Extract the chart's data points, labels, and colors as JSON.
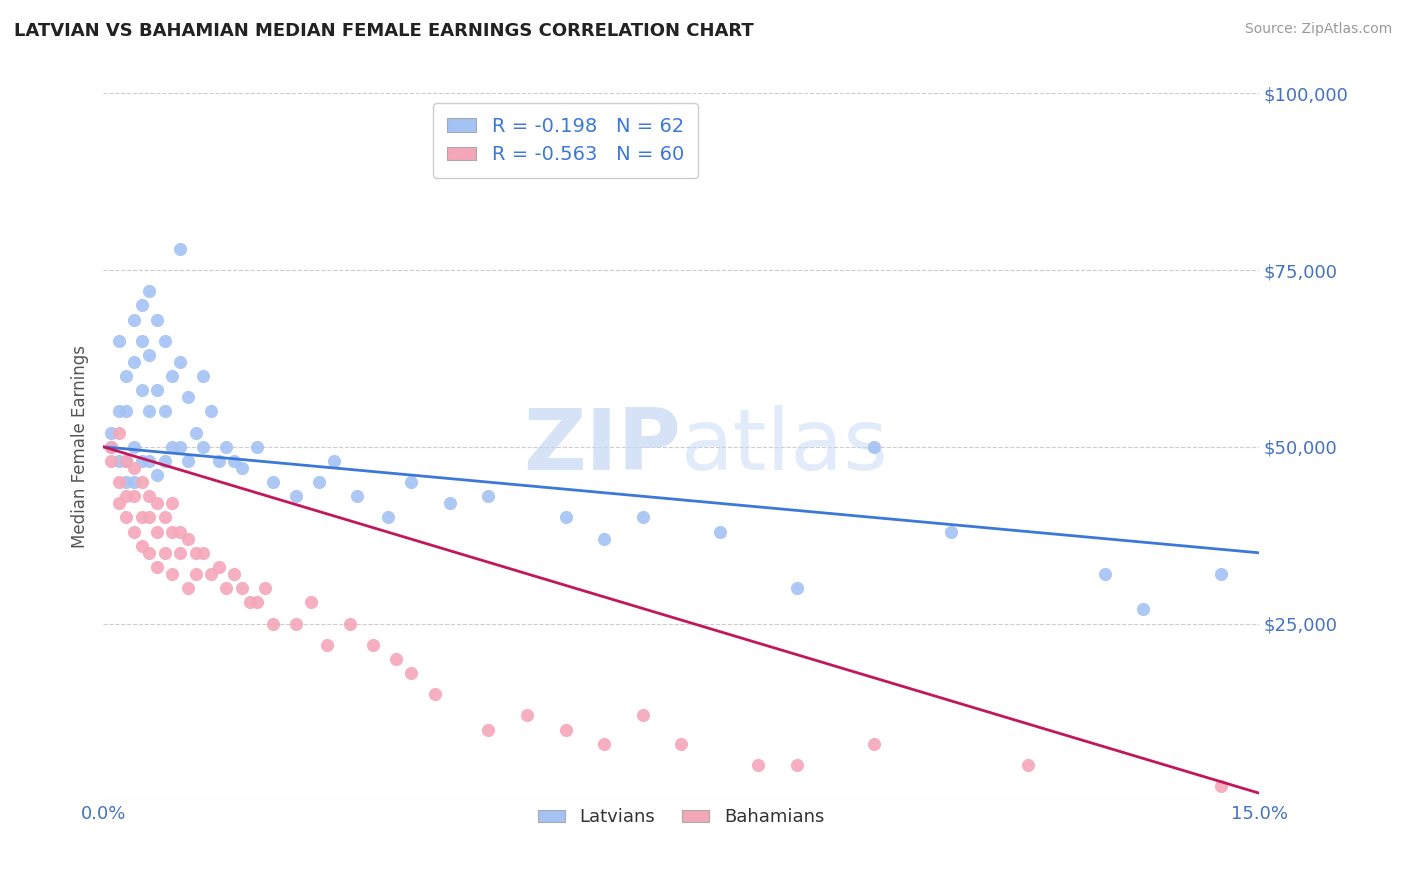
{
  "title": "LATVIAN VS BAHAMIAN MEDIAN FEMALE EARNINGS CORRELATION CHART",
  "source": "Source: ZipAtlas.com",
  "ylabel": "Median Female Earnings",
  "xlim": [
    0.0,
    0.15
  ],
  "ylim": [
    0,
    100000
  ],
  "yticks": [
    0,
    25000,
    50000,
    75000,
    100000
  ],
  "ytick_labels": [
    "",
    "$25,000",
    "$50,000",
    "$75,000",
    "$100,000"
  ],
  "xticks": [
    0.0,
    0.15
  ],
  "xtick_labels": [
    "0.0%",
    "15.0%"
  ],
  "latvian_color": "#a4c2f4",
  "bahamian_color": "#f4a7b9",
  "latvian_line_color": "#3c78d8",
  "bahamian_line_color": "#c2185b",
  "legend_text_color": "#3c78d8",
  "axis_tick_color": "#4472c4",
  "R_latvian": -0.198,
  "N_latvian": 62,
  "R_bahamian": -0.563,
  "N_bahamian": 60,
  "latvian_line_y0": 50000,
  "latvian_line_y1": 35000,
  "bahamian_line_y0": 50000,
  "bahamian_line_y1": 1000,
  "latvians_x": [
    0.001,
    0.001,
    0.002,
    0.002,
    0.002,
    0.003,
    0.003,
    0.003,
    0.003,
    0.004,
    0.004,
    0.004,
    0.004,
    0.005,
    0.005,
    0.005,
    0.005,
    0.006,
    0.006,
    0.006,
    0.006,
    0.007,
    0.007,
    0.007,
    0.008,
    0.008,
    0.008,
    0.009,
    0.009,
    0.01,
    0.01,
    0.01,
    0.011,
    0.011,
    0.012,
    0.013,
    0.013,
    0.014,
    0.015,
    0.016,
    0.017,
    0.018,
    0.02,
    0.022,
    0.025,
    0.028,
    0.03,
    0.033,
    0.037,
    0.04,
    0.045,
    0.05,
    0.06,
    0.065,
    0.07,
    0.08,
    0.09,
    0.1,
    0.11,
    0.13,
    0.135,
    0.145
  ],
  "latvians_y": [
    50000,
    52000,
    55000,
    48000,
    65000,
    60000,
    55000,
    48000,
    45000,
    68000,
    62000,
    50000,
    45000,
    70000,
    65000,
    58000,
    48000,
    72000,
    63000,
    55000,
    48000,
    68000,
    58000,
    46000,
    65000,
    55000,
    48000,
    60000,
    50000,
    78000,
    62000,
    50000,
    57000,
    48000,
    52000,
    60000,
    50000,
    55000,
    48000,
    50000,
    48000,
    47000,
    50000,
    45000,
    43000,
    45000,
    48000,
    43000,
    40000,
    45000,
    42000,
    43000,
    40000,
    37000,
    40000,
    38000,
    30000,
    50000,
    38000,
    32000,
    27000,
    32000
  ],
  "bahamians_x": [
    0.001,
    0.001,
    0.002,
    0.002,
    0.002,
    0.003,
    0.003,
    0.003,
    0.004,
    0.004,
    0.004,
    0.005,
    0.005,
    0.005,
    0.006,
    0.006,
    0.006,
    0.007,
    0.007,
    0.007,
    0.008,
    0.008,
    0.009,
    0.009,
    0.009,
    0.01,
    0.01,
    0.011,
    0.011,
    0.012,
    0.012,
    0.013,
    0.014,
    0.015,
    0.016,
    0.017,
    0.018,
    0.019,
    0.02,
    0.021,
    0.022,
    0.025,
    0.027,
    0.029,
    0.032,
    0.035,
    0.038,
    0.04,
    0.043,
    0.05,
    0.055,
    0.06,
    0.065,
    0.07,
    0.075,
    0.085,
    0.09,
    0.1,
    0.12,
    0.145
  ],
  "bahamians_y": [
    50000,
    48000,
    52000,
    45000,
    42000,
    48000,
    43000,
    40000,
    47000,
    43000,
    38000,
    45000,
    40000,
    36000,
    43000,
    40000,
    35000,
    42000,
    38000,
    33000,
    40000,
    35000,
    42000,
    38000,
    32000,
    38000,
    35000,
    37000,
    30000,
    35000,
    32000,
    35000,
    32000,
    33000,
    30000,
    32000,
    30000,
    28000,
    28000,
    30000,
    25000,
    25000,
    28000,
    22000,
    25000,
    22000,
    20000,
    18000,
    15000,
    10000,
    12000,
    10000,
    8000,
    12000,
    8000,
    5000,
    5000,
    8000,
    5000,
    2000
  ]
}
